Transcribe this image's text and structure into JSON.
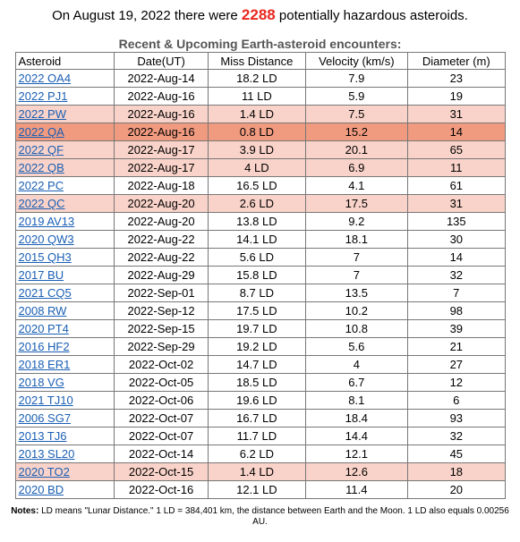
{
  "headline": {
    "prefix": "On August 19, 2022 there were ",
    "count": "2288",
    "suffix": " potentially hazardous asteroids."
  },
  "table": {
    "title": "Recent & Upcoming Earth-asteroid encounters:",
    "headers": [
      "Asteroid",
      "Date(UT)",
      "Miss Distance",
      "Velocity (km/s)",
      "Diameter (m)"
    ],
    "rows": [
      {
        "name": "2022 OA4",
        "date": "2022-Aug-14",
        "miss": "18.2 LD",
        "vel": "7.9",
        "diam": "23",
        "hl": ""
      },
      {
        "name": "2022 PJ1",
        "date": "2022-Aug-16",
        "miss": "11 LD",
        "vel": "5.9",
        "diam": "19",
        "hl": ""
      },
      {
        "name": "2022 PW",
        "date": "2022-Aug-16",
        "miss": "1.4 LD",
        "vel": "7.5",
        "diam": "31",
        "hl": "light"
      },
      {
        "name": "2022 QA",
        "date": "2022-Aug-16",
        "miss": "0.8 LD",
        "vel": "15.2",
        "diam": "14",
        "hl": "strong"
      },
      {
        "name": "2022 QF",
        "date": "2022-Aug-17",
        "miss": "3.9 LD",
        "vel": "20.1",
        "diam": "65",
        "hl": "light"
      },
      {
        "name": "2022 QB",
        "date": "2022-Aug-17",
        "miss": "4 LD",
        "vel": "6.9",
        "diam": "11",
        "hl": "light"
      },
      {
        "name": "2022 PC",
        "date": "2022-Aug-18",
        "miss": "16.5 LD",
        "vel": "4.1",
        "diam": "61",
        "hl": ""
      },
      {
        "name": "2022 QC",
        "date": "2022-Aug-20",
        "miss": "2.6 LD",
        "vel": "17.5",
        "diam": "31",
        "hl": "light"
      },
      {
        "name": "2019 AV13",
        "date": "2022-Aug-20",
        "miss": "13.8 LD",
        "vel": "9.2",
        "diam": "135",
        "hl": ""
      },
      {
        "name": "2020 QW3",
        "date": "2022-Aug-22",
        "miss": "14.1 LD",
        "vel": "18.1",
        "diam": "30",
        "hl": ""
      },
      {
        "name": "2015 QH3",
        "date": "2022-Aug-22",
        "miss": "5.6 LD",
        "vel": "7",
        "diam": "14",
        "hl": ""
      },
      {
        "name": "2017 BU",
        "date": "2022-Aug-29",
        "miss": "15.8 LD",
        "vel": "7",
        "diam": "32",
        "hl": ""
      },
      {
        "name": "2021 CQ5",
        "date": "2022-Sep-01",
        "miss": "8.7 LD",
        "vel": "13.5",
        "diam": "7",
        "hl": ""
      },
      {
        "name": "2008 RW",
        "date": "2022-Sep-12",
        "miss": "17.5 LD",
        "vel": "10.2",
        "diam": "98",
        "hl": ""
      },
      {
        "name": "2020 PT4",
        "date": "2022-Sep-15",
        "miss": "19.7 LD",
        "vel": "10.8",
        "diam": "39",
        "hl": ""
      },
      {
        "name": "2016 HF2",
        "date": "2022-Sep-29",
        "miss": "19.2 LD",
        "vel": "5.6",
        "diam": "21",
        "hl": ""
      },
      {
        "name": "2018 ER1",
        "date": "2022-Oct-02",
        "miss": "14.7 LD",
        "vel": "4",
        "diam": "27",
        "hl": ""
      },
      {
        "name": "2018 VG",
        "date": "2022-Oct-05",
        "miss": "18.5 LD",
        "vel": "6.7",
        "diam": "12",
        "hl": ""
      },
      {
        "name": "2021 TJ10",
        "date": "2022-Oct-06",
        "miss": "19.6 LD",
        "vel": "8.1",
        "diam": "6",
        "hl": ""
      },
      {
        "name": "2006 SG7",
        "date": "2022-Oct-07",
        "miss": "16.7 LD",
        "vel": "18.4",
        "diam": "93",
        "hl": ""
      },
      {
        "name": "2013 TJ6",
        "date": "2022-Oct-07",
        "miss": "11.7 LD",
        "vel": "14.4",
        "diam": "32",
        "hl": ""
      },
      {
        "name": "2013 SL20",
        "date": "2022-Oct-14",
        "miss": "6.2 LD",
        "vel": "12.1",
        "diam": "45",
        "hl": ""
      },
      {
        "name": "2020 TO2",
        "date": "2022-Oct-15",
        "miss": "1.4 LD",
        "vel": "12.6",
        "diam": "18",
        "hl": "light"
      },
      {
        "name": "2020 BD",
        "date": "2022-Oct-16",
        "miss": "12.1 LD",
        "vel": "11.4",
        "diam": "20",
        "hl": ""
      }
    ]
  },
  "notes": {
    "label": "Notes:",
    "text": " LD means \"Lunar Distance.\" 1 LD = 384,401 km, the distance between Earth and the Moon. 1 LD also equals 0.00256 AU."
  },
  "colors": {
    "count": "#e8281f",
    "link": "#1a5fb4",
    "highlight_light": "#f9d3c9",
    "highlight_strong": "#f09a80"
  }
}
